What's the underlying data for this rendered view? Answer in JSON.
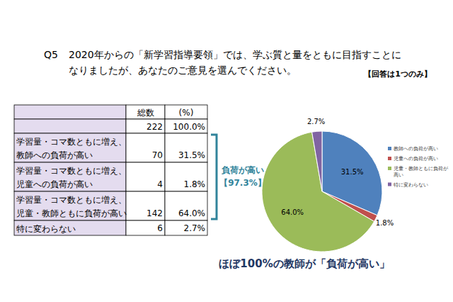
{
  "question": {
    "number": "Q5",
    "lines": [
      "2020年からの「新学習指導要領」では、学ぶ質と量をともに目指すことに",
      "なりましたが、あなたのご意見を選んでください。"
    ],
    "note": "【回答は1つのみ】"
  },
  "table": {
    "columns": [
      "総数",
      "(%)"
    ],
    "total": [
      222,
      "100.0%"
    ],
    "rows": [
      {
        "label": [
          "学習量・コマ数ともに増え、",
          "教師への負荷が高い"
        ],
        "cells": [
          70,
          "31.5%"
        ]
      },
      {
        "label": [
          "学習量・コマ数ともに増え、",
          "児童への負荷が高い"
        ],
        "cells": [
          4,
          "1.8%"
        ]
      },
      {
        "label": [
          "学習量・コマ数ともに増え、",
          "児童・教師ともに負荷が高い"
        ],
        "cells": [
          142,
          "64.0%"
        ]
      },
      {
        "label": [
          "特に変わらない"
        ],
        "cells": [
          6,
          "2.7%"
        ]
      }
    ]
  },
  "annotation": {
    "lines": [
      "負荷が高い",
      "【97.3%】"
    ]
  },
  "caption": "ほぼ100%の教師が「負荷が高い」",
  "chart_data": {
    "type": "pie",
    "categories": [
      "教師への負荷が高い",
      "児童への負荷が高い",
      "児童・教師ともに負荷が高い",
      "特に変わらない"
    ],
    "values": [
      31.5,
      1.8,
      64.0,
      2.7
    ],
    "value_labels": [
      "31.5%",
      "1.8%",
      "64.0%",
      "2.7%"
    ],
    "colors": [
      "#4f81bd",
      "#c0504d",
      "#9bbb59",
      "#8064a2"
    ],
    "data_labels": true,
    "legend": "right"
  }
}
